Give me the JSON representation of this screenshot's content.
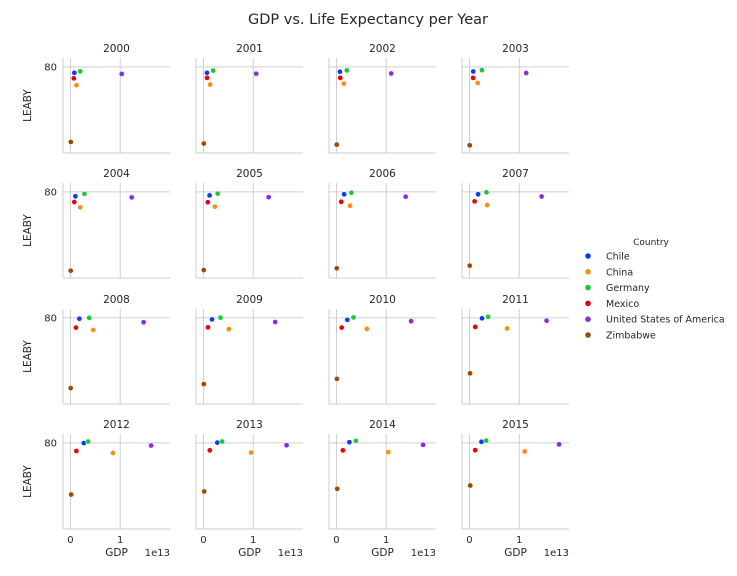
{
  "chart_data": {
    "type": "scatter",
    "title": "GDP vs. Life Expectancy per Year",
    "xlabel": "GDP",
    "ylabel": "LEABY",
    "x_offset_text": "1e13",
    "x_ticks": [
      0,
      1
    ],
    "y_ticks": [
      80
    ],
    "xlim": [
      -0.15,
      2.0
    ],
    "ylim": [
      41,
      84
    ],
    "grid": true,
    "legend": {
      "title": "Country",
      "position": "right"
    },
    "series": [
      {
        "name": "Chile",
        "color": "#0a3df4"
      },
      {
        "name": "China",
        "color": "#ff8c0f"
      },
      {
        "name": "Germany",
        "color": "#1ac938"
      },
      {
        "name": "Mexico",
        "color": "#e8000b"
      },
      {
        "name": "United States of America",
        "color": "#8b2be2"
      },
      {
        "name": "Zimbabwe",
        "color": "#9f4800"
      }
    ],
    "panels": [
      {
        "title": "2000",
        "x": [
          0.078,
          0.121,
          0.195,
          0.068,
          1.03,
          0.0067
        ],
        "y": [
          77.3,
          71.7,
          78.0,
          74.8,
          76.8,
          46.0
        ]
      },
      {
        "title": "2001",
        "x": [
          0.071,
          0.134,
          0.195,
          0.072,
          1.06,
          0.0069
        ],
        "y": [
          77.3,
          72.0,
          78.3,
          75.0,
          76.9,
          45.3
        ]
      },
      {
        "title": "2002",
        "x": [
          0.07,
          0.147,
          0.208,
          0.077,
          1.1,
          0.0064
        ],
        "y": [
          77.8,
          72.4,
          78.4,
          75.0,
          77.0,
          44.8
        ]
      },
      {
        "title": "2003",
        "x": [
          0.076,
          0.166,
          0.25,
          0.073,
          1.14,
          0.0057
        ],
        "y": [
          77.9,
          72.7,
          78.5,
          75.0,
          77.2,
          44.5
        ]
      },
      {
        "title": "2004",
        "x": [
          0.099,
          0.196,
          0.281,
          0.077,
          1.23,
          0.0058
        ],
        "y": [
          78.0,
          73.0,
          79.1,
          75.4,
          77.5,
          44.3
        ]
      },
      {
        "title": "2005",
        "x": [
          0.123,
          0.229,
          0.286,
          0.087,
          1.31,
          0.0057
        ],
        "y": [
          78.4,
          73.3,
          79.2,
          75.3,
          77.6,
          44.6
        ]
      },
      {
        "title": "2006",
        "x": [
          0.154,
          0.275,
          0.3,
          0.096,
          1.39,
          0.0054
        ],
        "y": [
          78.9,
          73.7,
          79.6,
          75.5,
          77.8,
          45.4
        ]
      },
      {
        "title": "2007",
        "x": [
          0.173,
          0.355,
          0.342,
          0.104,
          1.45,
          0.0052
        ],
        "y": [
          78.9,
          74.0,
          79.8,
          75.7,
          77.9,
          46.6
        ]
      },
      {
        "title": "2008",
        "x": [
          0.179,
          0.456,
          0.375,
          0.11,
          1.47,
          0.0044
        ],
        "y": [
          79.6,
          74.5,
          80.0,
          75.6,
          78.0,
          48.2
        ]
      },
      {
        "title": "2009",
        "x": [
          0.172,
          0.51,
          0.342,
          0.09,
          1.44,
          0.0083
        ],
        "y": [
          79.3,
          74.9,
          80.1,
          75.7,
          78.1,
          50.0
        ]
      },
      {
        "title": "2010",
        "x": [
          0.218,
          0.61,
          0.342,
          0.105,
          1.5,
          0.0102
        ],
        "y": [
          79.1,
          75.0,
          80.2,
          75.6,
          78.5,
          52.4
        ]
      },
      {
        "title": "2011",
        "x": [
          0.252,
          0.755,
          0.375,
          0.117,
          1.55,
          0.0121
        ],
        "y": [
          79.8,
          75.2,
          80.5,
          75.9,
          78.7,
          54.9
        ]
      },
      {
        "title": "2012",
        "x": [
          0.267,
          0.853,
          0.354,
          0.119,
          1.62,
          0.0146
        ],
        "y": [
          79.9,
          75.4,
          80.6,
          76.3,
          78.8,
          56.6
        ]
      },
      {
        "title": "2013",
        "x": [
          0.278,
          0.957,
          0.375,
          0.127,
          1.67,
          0.0152
        ],
        "y": [
          80.1,
          75.6,
          80.6,
          76.6,
          78.9,
          58.0
        ]
      },
      {
        "title": "2014",
        "x": [
          0.26,
          1.04,
          0.39,
          0.13,
          1.74,
          0.0155
        ],
        "y": [
          80.3,
          75.8,
          80.9,
          76.6,
          79.1,
          59.2
        ]
      },
      {
        "title": "2015",
        "x": [
          0.242,
          1.11,
          0.336,
          0.115,
          1.8,
          0.0163
        ],
        "y": [
          80.5,
          76.1,
          81.0,
          76.7,
          79.3,
          60.7
        ]
      }
    ]
  }
}
